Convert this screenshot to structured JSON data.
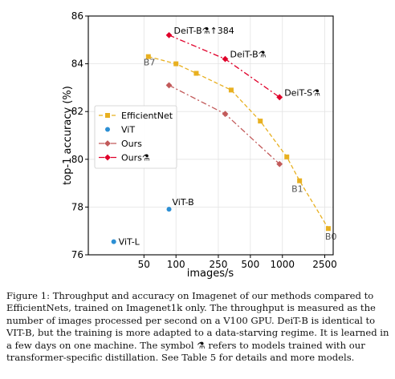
{
  "chart_data": {
    "type": "line",
    "xlabel": "images/s",
    "ylabel": "top-1 accuracy (%)",
    "xscale": "log",
    "xlim": [
      15,
      3000
    ],
    "ylim": [
      76,
      86
    ],
    "xticks": [
      50,
      100,
      250,
      500,
      1000,
      2500
    ],
    "yticks": [
      76,
      78,
      80,
      82,
      84,
      86
    ],
    "grid": true,
    "legend_position": "center-left",
    "series": [
      {
        "name": "EfficientNet",
        "color": "#e8b020",
        "style": "dashed",
        "marker": "square",
        "points": [
          {
            "x": 55,
            "y": 84.3,
            "label": "B7"
          },
          {
            "x": 100,
            "y": 84.0
          },
          {
            "x": 155,
            "y": 83.6
          },
          {
            "x": 330,
            "y": 82.9
          },
          {
            "x": 620,
            "y": 81.6
          },
          {
            "x": 1100,
            "y": 80.1
          },
          {
            "x": 1450,
            "y": 79.1,
            "label": "B1"
          },
          {
            "x": 2700,
            "y": 77.1,
            "label": "B0"
          }
        ]
      },
      {
        "name": "ViT",
        "color": "#2c8fd4",
        "style": "none",
        "marker": "circle",
        "points": [
          {
            "x": 26,
            "y": 76.55,
            "label": "ViT-L"
          },
          {
            "x": 86,
            "y": 77.91,
            "label": "ViT-B"
          }
        ]
      },
      {
        "name": "Ours",
        "color": "#c25a5a",
        "style": "dashdot",
        "marker": "diamond",
        "points": [
          {
            "x": 86,
            "y": 83.1
          },
          {
            "x": 290,
            "y": 81.9
          },
          {
            "x": 940,
            "y": 79.8
          }
        ]
      },
      {
        "name": "Ours⚗",
        "color": "#e0002a",
        "style": "dashdot",
        "marker": "diamond",
        "points": [
          {
            "x": 86,
            "y": 85.2,
            "label": "DeiT-B⚗↑384"
          },
          {
            "x": 290,
            "y": 84.2,
            "label": "DeiT-B⚗"
          },
          {
            "x": 940,
            "y": 82.6,
            "label": "DeiT-S⚗"
          }
        ]
      }
    ]
  },
  "caption": "Figure 1: Throughput and accuracy on Imagenet of our methods compared to EfficientNets, trained on Imagenet1k only. The throughput is measured as the number of images processed per second on a V100 GPU. DeiT-B is identical to VIT-B, but the training is more adapted to a data-starving regime. It is learned in a few days on one machine. The symbol ⚗ refers to models trained with our transformer-specific distillation. See Table 5 for details and more models."
}
